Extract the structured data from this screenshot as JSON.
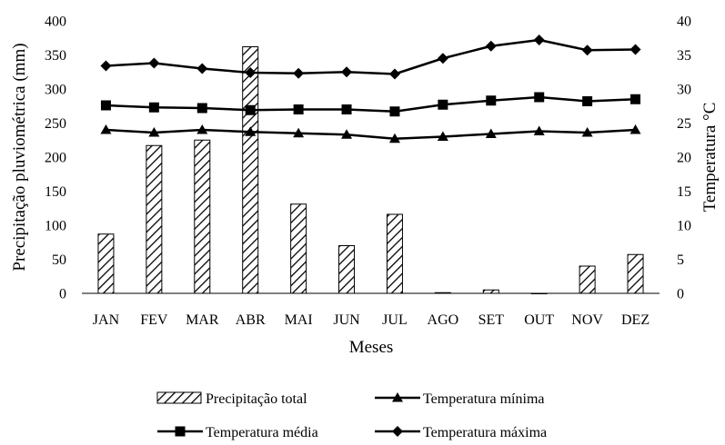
{
  "chart_data": {
    "type": "bar",
    "title": "",
    "xlabel": "Meses",
    "ylabel": "Precipitação pluviométrica (mm)",
    "y2label": "Temperatura °C",
    "categories": [
      "JAN",
      "FEV",
      "MAR",
      "ABR",
      "MAI",
      "JUN",
      "JUL",
      "AGO",
      "SET",
      "OUT",
      "NOV",
      "DEZ"
    ],
    "ylim": [
      0,
      400
    ],
    "y2lim": [
      0,
      40
    ],
    "yticks": [
      "0",
      "50",
      "100",
      "150",
      "200",
      "250",
      "300",
      "350",
      "400"
    ],
    "y2ticks": [
      "0",
      "5",
      "10",
      "15",
      "20",
      "25",
      "30",
      "35",
      "40"
    ],
    "grid": false,
    "legend_position": "bottom",
    "series": [
      {
        "name": "Precipitação total",
        "type": "bar",
        "axis": "left",
        "pattern": "diagonal-hatch",
        "values": [
          87,
          217,
          225,
          362,
          131,
          70,
          116,
          1,
          5,
          0,
          40,
          57
        ]
      },
      {
        "name": "Temperatura mínima",
        "type": "line",
        "axis": "right",
        "marker": "triangle",
        "values": [
          24.0,
          23.6,
          24.0,
          23.7,
          23.5,
          23.3,
          22.7,
          23.0,
          23.4,
          23.8,
          23.6,
          24.0
        ]
      },
      {
        "name": "Temperatura média",
        "type": "line",
        "axis": "right",
        "marker": "square",
        "values": [
          27.6,
          27.3,
          27.2,
          26.9,
          27.0,
          27.0,
          26.7,
          27.7,
          28.3,
          28.8,
          28.2,
          28.5
        ]
      },
      {
        "name": "Temperatura máxima",
        "type": "line",
        "axis": "right",
        "marker": "diamond",
        "values": [
          33.4,
          33.8,
          33.0,
          32.4,
          32.3,
          32.5,
          32.2,
          34.5,
          36.3,
          37.2,
          35.7,
          35.8
        ]
      }
    ],
    "colors": {
      "ink": "#000000",
      "background": "#ffffff"
    }
  }
}
